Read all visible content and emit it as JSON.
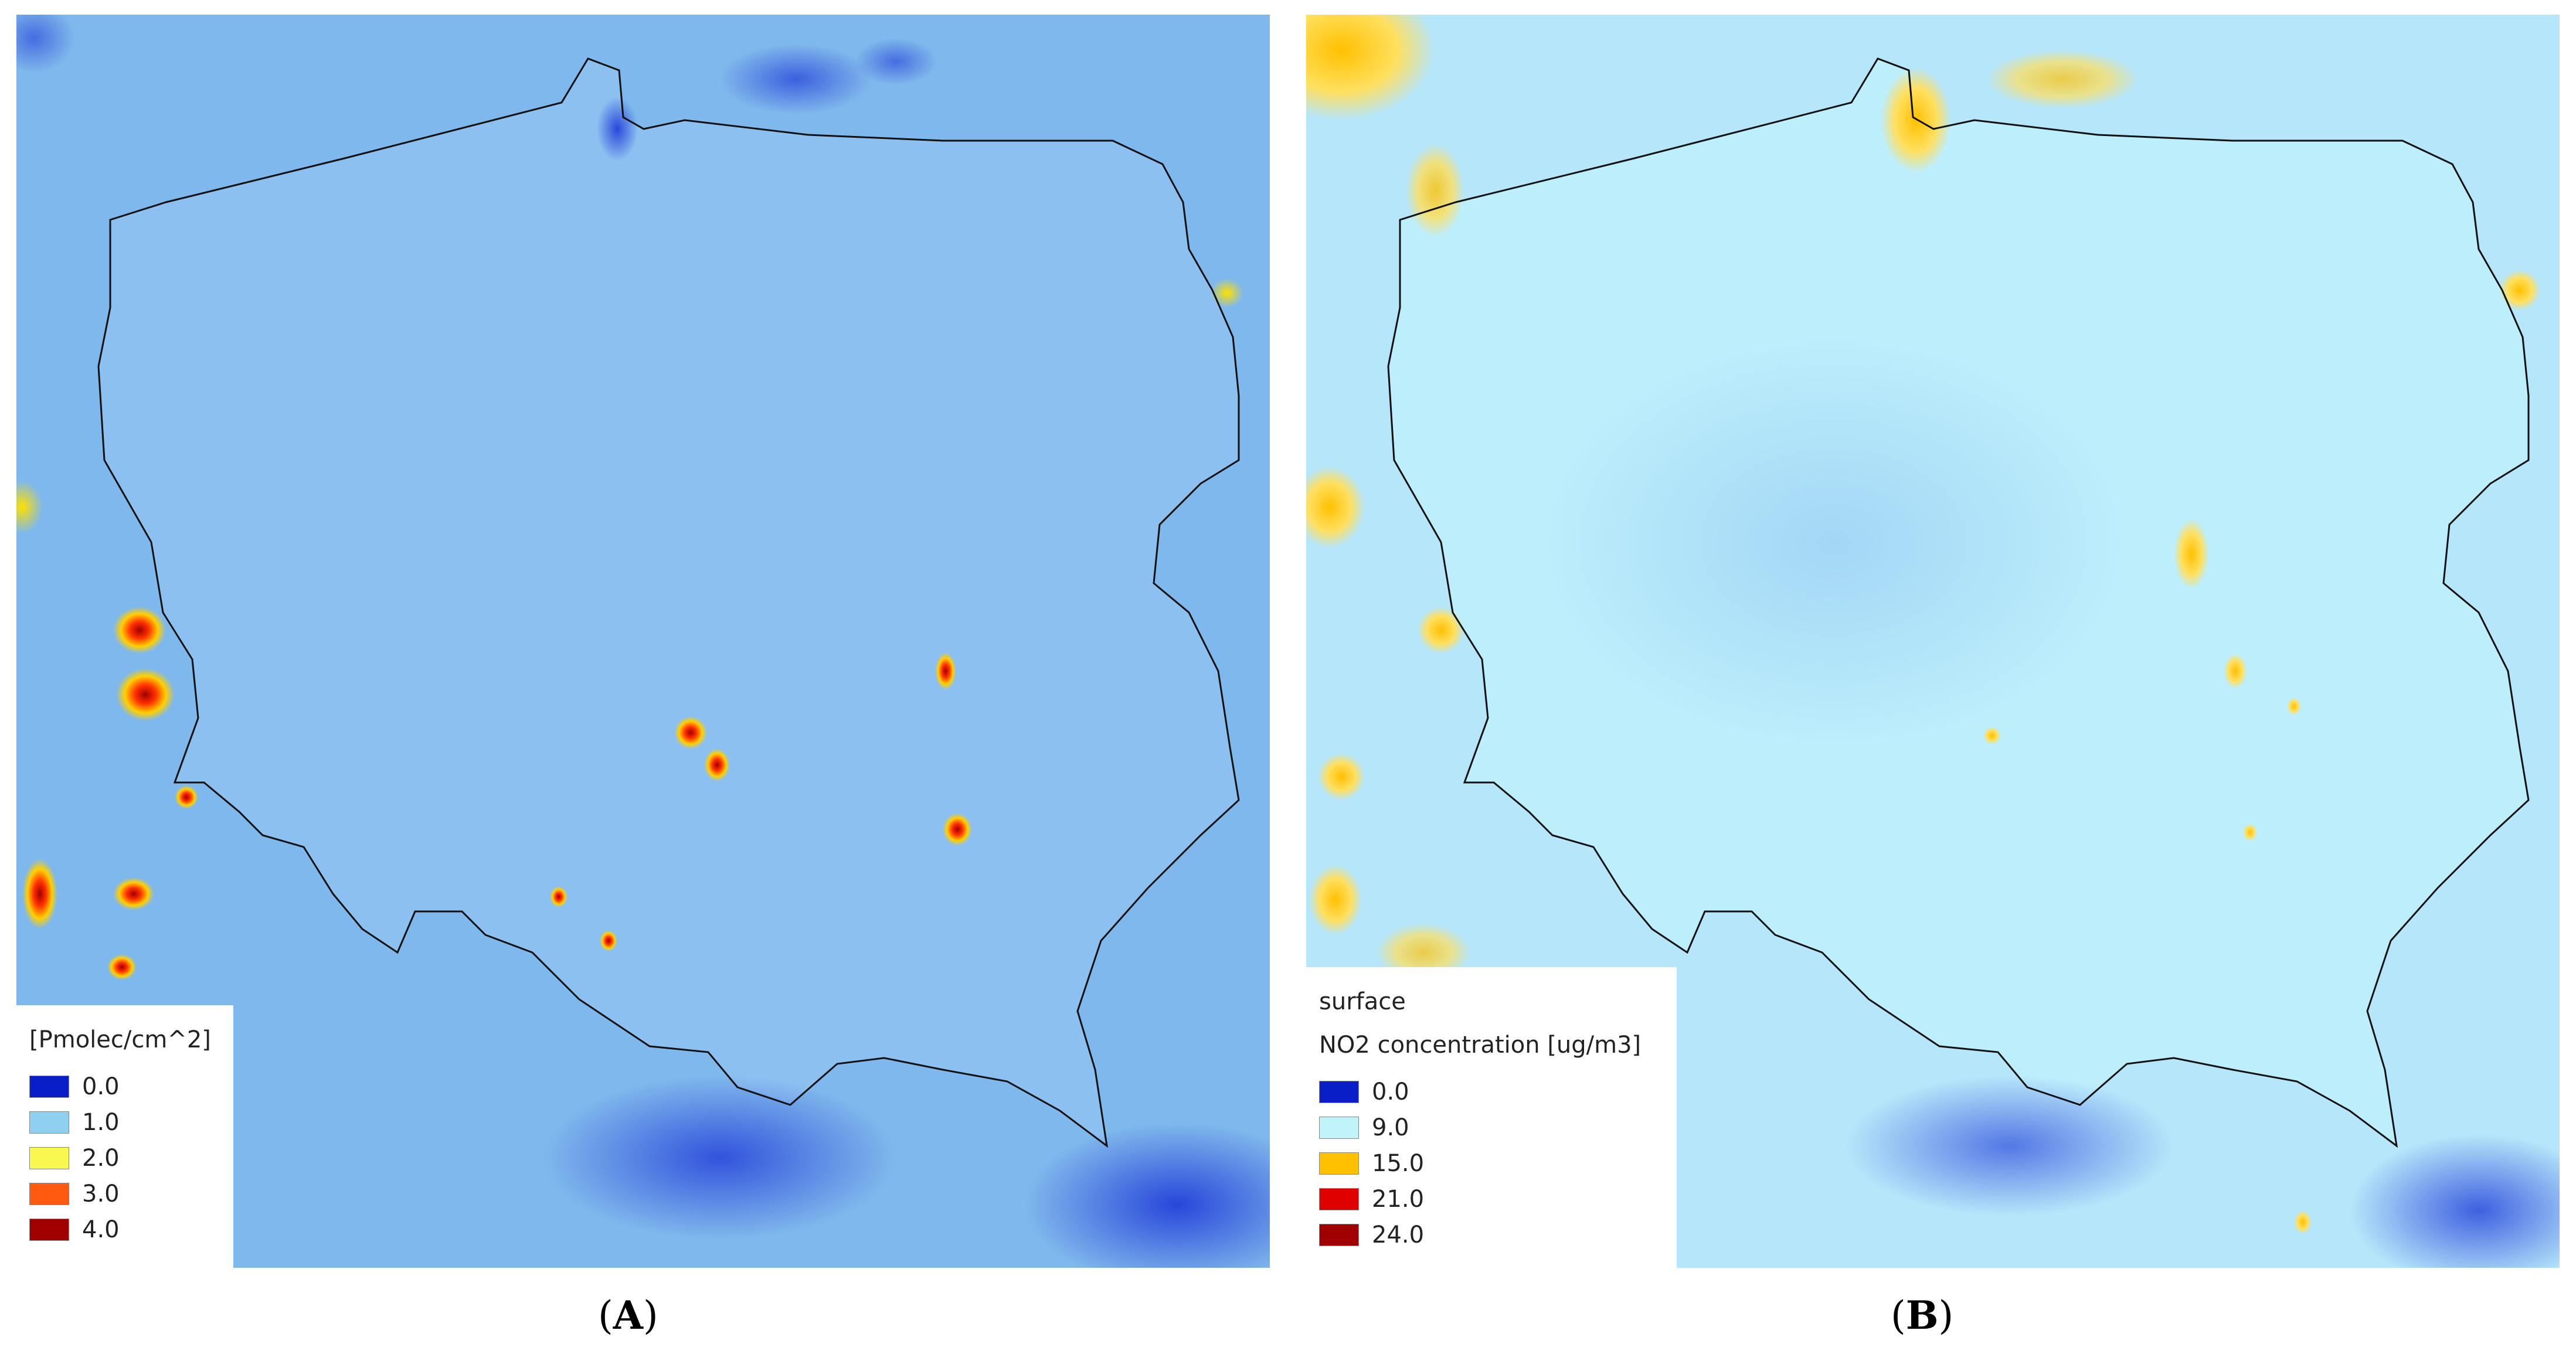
{
  "panels": [
    {
      "id": "A",
      "caption_letter": "A",
      "legend": {
        "title": "[Pmolec/cm^2]",
        "items": [
          {
            "value": "0.0",
            "color": "#0a1ec8"
          },
          {
            "value": "1.0",
            "color": "#8fd0f0"
          },
          {
            "value": "2.0",
            "color": "#f8f850"
          },
          {
            "value": "3.0",
            "color": "#ff5a10"
          },
          {
            "value": "4.0",
            "color": "#a00000"
          }
        ]
      },
      "background_color": "#7fb8ec",
      "inside_color": "#8cc0f0"
    },
    {
      "id": "B",
      "caption_letter": "B",
      "legend": {
        "subtitle": "surface",
        "title": "NO2 concentration [ug/m3]",
        "items": [
          {
            "value": "0.0",
            "color": "#0a1ec8"
          },
          {
            "value": "9.0",
            "color": "#c0f4fa"
          },
          {
            "value": "15.0",
            "color": "#ffc000"
          },
          {
            "value": "21.0",
            "color": "#e00000"
          },
          {
            "value": "24.0",
            "color": "#a00000"
          }
        ]
      },
      "background_color": "#b6e6fa",
      "inside_color": "#bdeefc"
    }
  ]
}
